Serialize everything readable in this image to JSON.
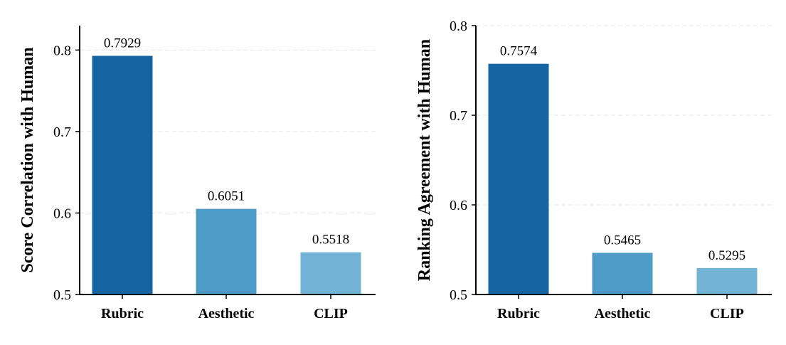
{
  "chart_data": [
    {
      "type": "bar",
      "categories": [
        "Rubric",
        "Aesthetic",
        "CLIP"
      ],
      "values": [
        0.7929,
        0.6051,
        0.5518
      ],
      "value_labels": [
        "0.7929",
        "0.6051",
        "0.5518"
      ],
      "colors": [
        "#1764a3",
        "#4f9bc7",
        "#72b3d6"
      ],
      "ylabel": "Score Correlation with Human",
      "xlabel": "",
      "ylim": [
        0.5,
        0.83
      ],
      "yticks": [
        "0.5",
        "0.6",
        "0.7",
        "0.8"
      ],
      "grid": true
    },
    {
      "type": "bar",
      "categories": [
        "Rubric",
        "Aesthetic",
        "CLIP"
      ],
      "values": [
        0.7574,
        0.5465,
        0.5295
      ],
      "value_labels": [
        "0.7574",
        "0.5465",
        "0.5295"
      ],
      "colors": [
        "#1764a3",
        "#4f9bc7",
        "#72b3d6"
      ],
      "ylabel": "Ranking Agreement with Human",
      "xlabel": "",
      "ylim": [
        0.5,
        0.8
      ],
      "yticks": [
        "0.5",
        "0.6",
        "0.7",
        "0.8"
      ],
      "grid": true
    }
  ]
}
